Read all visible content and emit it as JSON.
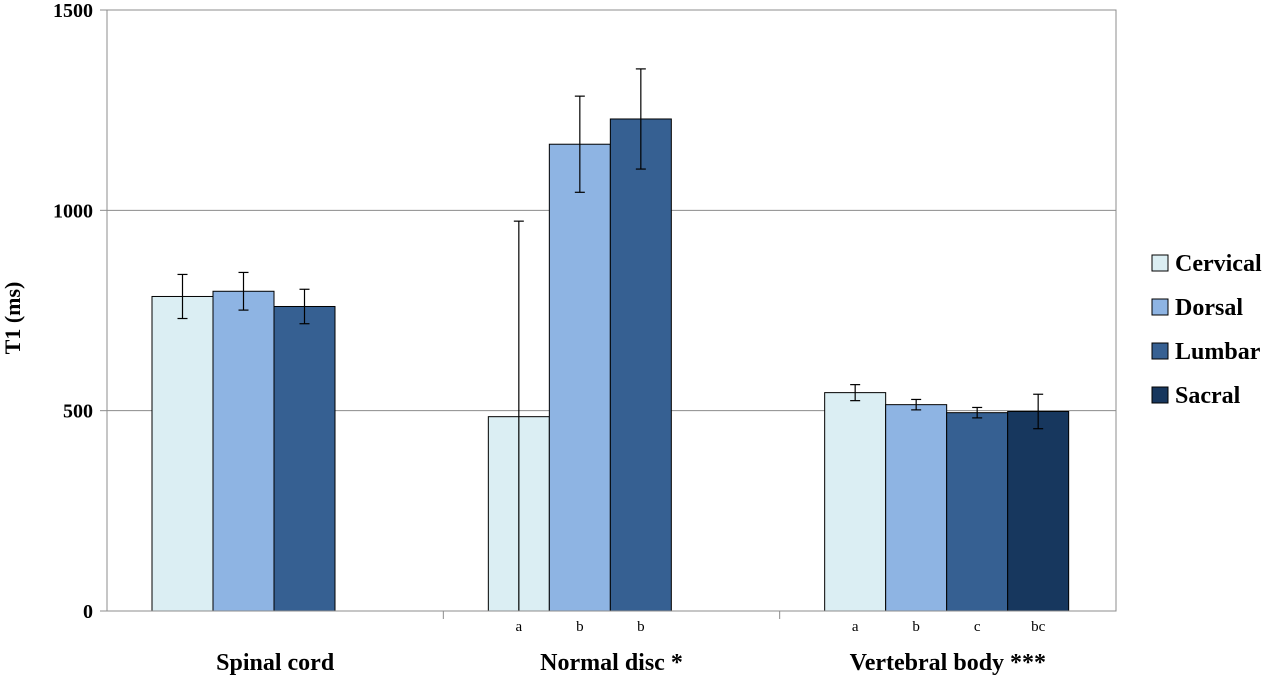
{
  "chart_data": {
    "type": "bar",
    "ylabel": "T1 (ms)",
    "xlabel": "",
    "ylim": [
      0,
      1500
    ],
    "yticks": [
      0,
      500,
      1000,
      1500
    ],
    "grid": true,
    "legend_position": "right",
    "categories": [
      "Spinal cord",
      "Normal disc *",
      "Vertebral body ***"
    ],
    "series": [
      {
        "name": "Cervical",
        "color": "#dbeef3",
        "values": [
          785,
          485,
          545
        ],
        "errors": [
          55,
          488,
          20
        ]
      },
      {
        "name": "Dorsal",
        "color": "#8eb4e3",
        "values": [
          798,
          1165,
          515
        ],
        "errors": [
          47,
          120,
          13
        ]
      },
      {
        "name": "Lumbar",
        "color": "#366092",
        "values": [
          760,
          1228,
          495
        ],
        "errors": [
          43,
          125,
          13
        ]
      },
      {
        "name": "Sacral",
        "color": "#17375e",
        "values": [
          null,
          null,
          498
        ],
        "errors": [
          null,
          null,
          43
        ]
      }
    ],
    "sig_labels": [
      [
        "",
        "",
        "",
        ""
      ],
      [
        "a",
        "b",
        "b",
        ""
      ],
      [
        "a",
        "b",
        "c",
        "bc"
      ]
    ]
  }
}
